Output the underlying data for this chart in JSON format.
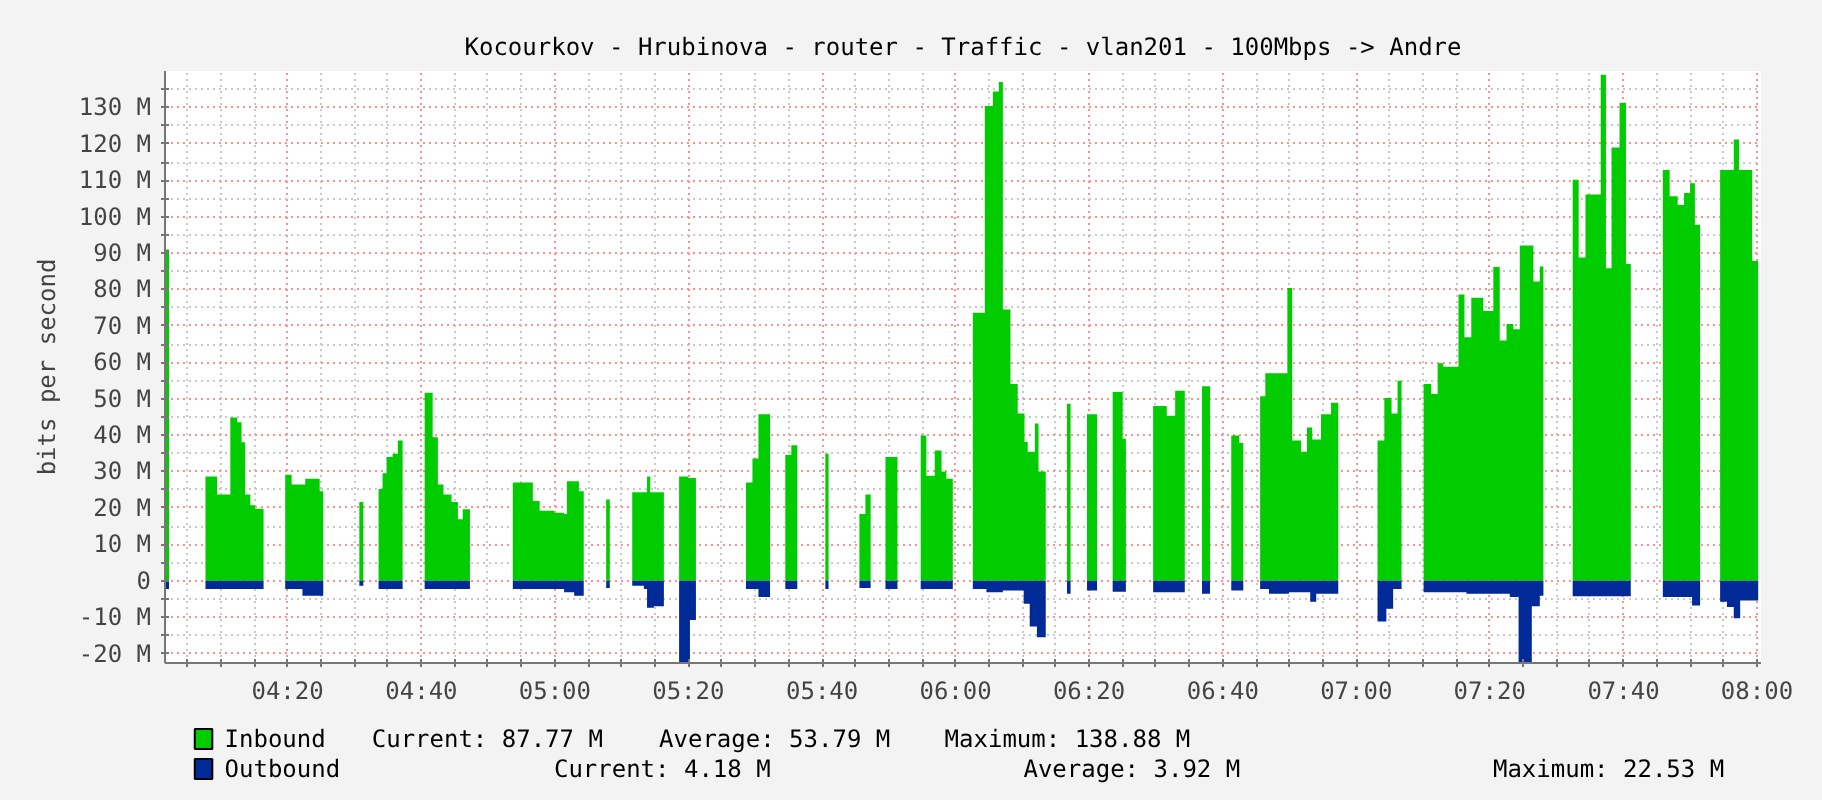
{
  "chart_data": {
    "type": "area",
    "title": "Kocourkov - Hrubinova - router - Traffic - vlan201 - 100Mbps -> Andre",
    "ylabel": "bits per second",
    "xlim": [
      4.027,
      8.01
    ],
    "ylim": [
      -22.6,
      140
    ],
    "xticks": [
      {
        "value": 4.083,
        "label": null
      },
      {
        "value": 4.167,
        "label": null
      },
      {
        "value": 4.25,
        "label": null
      },
      {
        "value": 4.333,
        "label": "04:20"
      },
      {
        "value": 4.417,
        "label": null
      },
      {
        "value": 4.5,
        "label": null
      },
      {
        "value": 4.583,
        "label": null
      },
      {
        "value": 4.667,
        "label": "04:40"
      },
      {
        "value": 4.75,
        "label": null
      },
      {
        "value": 4.833,
        "label": null
      },
      {
        "value": 4.917,
        "label": null
      },
      {
        "value": 5,
        "label": "05:00"
      },
      {
        "value": 5.083,
        "label": null
      },
      {
        "value": 5.167,
        "label": null
      },
      {
        "value": 5.25,
        "label": null
      },
      {
        "value": 5.333,
        "label": "05:20"
      },
      {
        "value": 5.417,
        "label": null
      },
      {
        "value": 5.5,
        "label": null
      },
      {
        "value": 5.583,
        "label": null
      },
      {
        "value": 5.667,
        "label": "05:40"
      },
      {
        "value": 5.75,
        "label": null
      },
      {
        "value": 5.833,
        "label": null
      },
      {
        "value": 5.917,
        "label": null
      },
      {
        "value": 6,
        "label": "06:00"
      },
      {
        "value": 6.083,
        "label": null
      },
      {
        "value": 6.167,
        "label": null
      },
      {
        "value": 6.25,
        "label": null
      },
      {
        "value": 6.333,
        "label": "06:20"
      },
      {
        "value": 6.417,
        "label": null
      },
      {
        "value": 6.5,
        "label": null
      },
      {
        "value": 6.583,
        "label": null
      },
      {
        "value": 6.667,
        "label": "06:40"
      },
      {
        "value": 6.75,
        "label": null
      },
      {
        "value": 6.833,
        "label": null
      },
      {
        "value": 6.917,
        "label": null
      },
      {
        "value": 7,
        "label": "07:00"
      },
      {
        "value": 7.083,
        "label": null
      },
      {
        "value": 7.167,
        "label": null
      },
      {
        "value": 7.25,
        "label": null
      },
      {
        "value": 7.333,
        "label": "07:20"
      },
      {
        "value": 7.417,
        "label": null
      },
      {
        "value": 7.5,
        "label": null
      },
      {
        "value": 7.583,
        "label": null
      },
      {
        "value": 7.667,
        "label": "07:40"
      },
      {
        "value": 7.75,
        "label": null
      },
      {
        "value": 7.833,
        "label": null
      },
      {
        "value": 7.917,
        "label": null
      },
      {
        "value": 8,
        "label": "08:00"
      }
    ],
    "yticks": [
      {
        "value": -20,
        "label": "-20 M"
      },
      {
        "value": -15,
        "label": null
      },
      {
        "value": -10,
        "label": "-10 M"
      },
      {
        "value": -5,
        "label": null
      },
      {
        "value": 0,
        "label": "0"
      },
      {
        "value": 5,
        "label": null
      },
      {
        "value": 10,
        "label": "10 M"
      },
      {
        "value": 15,
        "label": null
      },
      {
        "value": 20,
        "label": "20 M"
      },
      {
        "value": 25,
        "label": null
      },
      {
        "value": 30,
        "label": "30 M"
      },
      {
        "value": 35,
        "label": null
      },
      {
        "value": 40,
        "label": "40 M"
      },
      {
        "value": 45,
        "label": null
      },
      {
        "value": 50,
        "label": "50 M"
      },
      {
        "value": 55,
        "label": null
      },
      {
        "value": 60,
        "label": "60 M"
      },
      {
        "value": 65,
        "label": null
      },
      {
        "value": 70,
        "label": "70 M"
      },
      {
        "value": 75,
        "label": null
      },
      {
        "value": 80,
        "label": "80 M"
      },
      {
        "value": 85,
        "label": null
      },
      {
        "value": 90,
        "label": "90 M"
      },
      {
        "value": 95,
        "label": null
      },
      {
        "value": 100,
        "label": "100 M"
      },
      {
        "value": 105,
        "label": null
      },
      {
        "value": 110,
        "label": "110 M"
      },
      {
        "value": 115,
        "label": null
      },
      {
        "value": 120,
        "label": "120 M"
      },
      {
        "value": 125,
        "label": null
      },
      {
        "value": 130,
        "label": "130 M"
      },
      {
        "value": 135,
        "label": null
      }
    ],
    "grid": true,
    "legend": "bottom",
    "annotations": [
      "Current:   87.77 M",
      "Average:   53.79 M",
      "Maximum:  138.88 M",
      "Current:    4.18 M",
      "Average:    3.92 M",
      "Maximum:   22.53 M"
    ],
    "series": [
      {
        "name": "Inbound",
        "color": "#00cc00",
        "x": [
          4.028,
          4.037,
          null,
          4.128,
          4.152,
          4.157,
          4.188,
          4.19,
          4.207,
          4.218,
          4.227,
          4.24,
          4.252,
          4.273,
          null,
          4.327,
          4.343,
          4.368,
          4.377,
          4.407,
          4.413,
          4.422,
          null,
          4.512,
          4.522,
          null,
          4.56,
          4.57,
          4.58,
          4.595,
          4.608,
          4.62,
          null,
          4.675,
          4.69,
          4.695,
          4.708,
          4.722,
          4.742,
          4.758,
          4.77,
          4.788,
          null,
          4.895,
          4.937,
          4.945,
          4.962,
          4.998,
          5.023,
          5.03,
          5.052,
          5.06,
          5.072,
          null,
          5.128,
          5.137,
          null,
          5.193,
          5.222,
          5.23,
          5.238,
          5.272,
          null,
          5.31,
          5.333,
          5.352,
          null,
          5.477,
          5.493,
          5.508,
          5.537,
          null,
          5.575,
          5.59,
          5.605,
          null,
          5.675,
          5.683,
          null,
          5.76,
          5.775,
          5.788,
          null,
          5.825,
          5.855,
          null,
          5.913,
          5.927,
          5.948,
          5.965,
          5.977,
          5.993,
          null,
          6.043,
          6.073,
          6.093,
          6.108,
          6.118,
          6.137,
          6.155,
          6.172,
          6.18,
          6.198,
          6.207,
          6.225,
          null,
          6.278,
          6.287,
          null,
          6.328,
          6.353,
          null,
          6.392,
          6.417,
          6.425,
          null,
          6.493,
          6.527,
          6.548,
          6.572,
          null,
          6.615,
          6.635,
          null,
          6.688,
          6.708,
          6.718,
          null,
          6.76,
          6.773,
          6.823,
          6.828,
          6.84,
          6.862,
          6.877,
          6.89,
          6.912,
          6.937,
          6.955,
          null,
          7.053,
          7.07,
          7.088,
          7.103,
          7.113,
          null,
          7.168,
          7.187,
          7.203,
          7.217,
          7.247,
          7.255,
          7.27,
          7.287,
          7.317,
          7.342,
          7.358,
          7.375,
          7.392,
          7.408,
          7.428,
          7.442,
          7.458,
          7.467,
          null,
          7.54,
          7.555,
          7.572,
          7.598,
          7.61,
          7.623,
          7.637,
          7.657,
          7.673,
          7.685,
          null,
          7.765,
          7.782,
          7.802,
          7.818,
          7.833,
          7.845,
          7.858,
          null,
          7.908,
          7.933,
          7.942,
          7.955,
          7.983,
          7.988,
          8.003
        ],
        "values": [
          91,
          91,
          null,
          28.6,
          28.6,
          23.7,
          23.7,
          44.8,
          43.5,
          38,
          23.7,
          20.7,
          19.8,
          19.8,
          null,
          29.1,
          26.4,
          26.4,
          28,
          28,
          24.6,
          24.6,
          null,
          21.6,
          21.6,
          null,
          25.2,
          29.5,
          34,
          34.9,
          38.5,
          38.5,
          null,
          51.6,
          51.6,
          39.4,
          26.4,
          23.7,
          21.6,
          16.9,
          19.6,
          19.6,
          null,
          27,
          27,
          21.9,
          19.2,
          18.7,
          18.3,
          27.3,
          27.3,
          24.6,
          24.6,
          null,
          22.3,
          22.3,
          null,
          24.3,
          24.3,
          28.6,
          24.3,
          24.3,
          null,
          28.6,
          28.2,
          28.2,
          null,
          27,
          33.6,
          45.7,
          45.7,
          null,
          34.5,
          37.2,
          37.2,
          null,
          34.9,
          34.9,
          null,
          18.3,
          23.7,
          23.7,
          null,
          34,
          34,
          null,
          39.9,
          28.8,
          35.8,
          30,
          28,
          28,
          null,
          73.6,
          130.4,
          134.4,
          137,
          74.5,
          54,
          45.9,
          38.1,
          35.4,
          43.2,
          30,
          30,
          null,
          48.6,
          48.6,
          null,
          45.7,
          45.7,
          null,
          51.8,
          39,
          39,
          null,
          48,
          45.3,
          52.2,
          50.2,
          null,
          53.4,
          53.4,
          null,
          39.9,
          37.8,
          37.8,
          null,
          50.7,
          57,
          57,
          80.4,
          38.5,
          35.4,
          42.1,
          38.8,
          45.7,
          48.9,
          48.9,
          null,
          38.5,
          50.2,
          45.9,
          54.9,
          54.9,
          null,
          54,
          51.3,
          59.7,
          58.8,
          58.8,
          78.6,
          66.9,
          77.7,
          74.1,
          86.2,
          66,
          70.5,
          69.1,
          92.1,
          92.1,
          82.2,
          86.3,
          86.3,
          null,
          110.1,
          88.8,
          106.1,
          106.1,
          139,
          85.8,
          119,
          131.3,
          87,
          87,
          null,
          112.8,
          105.6,
          103.2,
          106.5,
          109.2,
          97.8,
          97.8,
          null,
          112.8,
          112.8,
          121.2,
          112.8,
          112.8,
          87.8,
          87.8
        ]
      },
      {
        "name": "Outbound",
        "color": "#002a97",
        "x": [
          4.028,
          4.037,
          null,
          4.128,
          4.273,
          null,
          4.327,
          4.37,
          4.41,
          4.422,
          null,
          4.512,
          4.522,
          null,
          4.56,
          4.62,
          null,
          4.675,
          4.788,
          null,
          4.895,
          4.998,
          5.023,
          5.048,
          5.072,
          null,
          5.128,
          5.137,
          null,
          5.193,
          5.222,
          5.23,
          5.247,
          5.272,
          null,
          5.31,
          5.333,
          5.337,
          5.352,
          null,
          5.477,
          5.508,
          5.537,
          null,
          5.575,
          5.605,
          null,
          5.675,
          5.683,
          null,
          5.76,
          5.788,
          null,
          5.825,
          5.855,
          null,
          5.913,
          5.993,
          null,
          6.043,
          6.077,
          6.118,
          6.158,
          6.17,
          6.185,
          6.203,
          6.225,
          null,
          6.278,
          6.287,
          null,
          6.328,
          6.353,
          null,
          6.392,
          6.425,
          null,
          6.493,
          6.572,
          null,
          6.615,
          6.635,
          null,
          6.688,
          6.718,
          null,
          6.76,
          6.782,
          6.832,
          6.885,
          6.9,
          6.955,
          null,
          7.053,
          7.075,
          7.092,
          7.113,
          null,
          7.168,
          7.275,
          7.342,
          7.383,
          7.405,
          7.428,
          7.438,
          7.458,
          7.467,
          null,
          7.54,
          7.685,
          null,
          7.765,
          7.838,
          7.858,
          null,
          7.908,
          7.925,
          7.942,
          7.958,
          8.003
        ],
        "values": [
          -2.3,
          -2.3,
          null,
          -2.3,
          -2.3,
          null,
          -2.3,
          -4.1,
          -4.1,
          -2.3,
          null,
          -1.4,
          -1.4,
          null,
          -2.3,
          -3,
          null,
          -2.3,
          -2.3,
          null,
          -2.3,
          -2.3,
          -3.2,
          -4.1,
          -5.8,
          null,
          -2,
          -2,
          null,
          -1.4,
          -2.3,
          -7.4,
          -7,
          -6,
          null,
          -22.5,
          -22.5,
          -10.8,
          -10.8,
          null,
          -2.3,
          -4.5,
          -4.5,
          null,
          -2.3,
          -2.3,
          null,
          -2.3,
          -2.3,
          null,
          -2,
          -2,
          null,
          -2.3,
          -2.3,
          null,
          -2.3,
          -2.7,
          null,
          -2.3,
          -3.2,
          -2.7,
          -2.7,
          -6.3,
          -12.6,
          -15.5,
          -15.5,
          null,
          -3.6,
          -3.6,
          null,
          -2.7,
          -2.7,
          null,
          -3,
          -3,
          null,
          -3.2,
          -3.2,
          null,
          -3.6,
          -3.6,
          null,
          -2.7,
          -2.7,
          null,
          -2.3,
          -3.6,
          -3.2,
          -5.8,
          -3.6,
          -3.6,
          null,
          -11.2,
          -7.7,
          -2.3,
          -2.3,
          null,
          -3.2,
          -3.6,
          -3.6,
          -4.5,
          -22.5,
          -22.5,
          -7,
          -4.1,
          -4.1,
          null,
          -4.3,
          -4.5,
          null,
          -4.5,
          -6.8,
          -6.5,
          null,
          -5.8,
          -7.2,
          -10.3,
          -5.4,
          -4.2
        ]
      }
    ]
  }
}
